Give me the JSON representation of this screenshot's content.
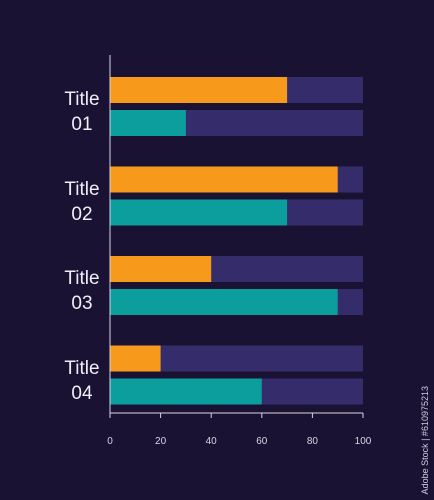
{
  "chart_data": {
    "type": "bar",
    "orientation": "horizontal",
    "style": "stacked-progress",
    "categories": [
      {
        "line1": "Title",
        "line2": "01"
      },
      {
        "line1": "Title",
        "line2": "02"
      },
      {
        "line1": "Title",
        "line2": "03"
      },
      {
        "line1": "Title",
        "line2": "04"
      }
    ],
    "series": [
      {
        "color": "#f79a1c",
        "values": [
          70,
          90,
          40,
          20
        ]
      },
      {
        "color": "#0c9e9c",
        "values": [
          30,
          70,
          90,
          60
        ]
      }
    ],
    "track_color": "#352d6b",
    "xlim": [
      0,
      100
    ],
    "xticks": [
      0,
      20,
      40,
      60,
      80,
      100
    ],
    "grid": false
  },
  "watermark": "Adobe Stock | #610975213"
}
